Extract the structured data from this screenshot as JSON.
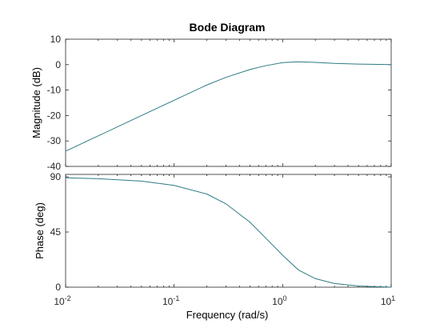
{
  "chart_data": {
    "type": "line",
    "title": "Bode Diagram",
    "xlabel": "Frequency  (rad/s)",
    "xscale": "log",
    "xlim": [
      0.01,
      10
    ],
    "x_ticks": [
      {
        "value": 0.01,
        "base": "10",
        "exp": "-2"
      },
      {
        "value": 0.1,
        "base": "10",
        "exp": "-1"
      },
      {
        "value": 1,
        "base": "10",
        "exp": "0"
      },
      {
        "value": 10,
        "base": "10",
        "exp": "1"
      }
    ],
    "line_color": "#2e7b83",
    "grid": false,
    "panels": [
      {
        "name": "magnitude",
        "ylabel": "Magnitude (dB)",
        "ylim": [
          -40,
          10
        ],
        "yticks": [
          10,
          0,
          -10,
          -20,
          -30,
          -40
        ],
        "series": [
          {
            "x": [
              0.01,
              0.02,
              0.05,
              0.1,
              0.2,
              0.3,
              0.5,
              0.7,
              1.0,
              1.4,
              2.0,
              3.0,
              5.0,
              10
            ],
            "y": [
              -34,
              -28,
              -20,
              -14,
              -8,
              -5,
              -1.9,
              -0.4,
              0.8,
              1.1,
              0.9,
              0.5,
              0.2,
              0
            ]
          }
        ]
      },
      {
        "name": "phase",
        "ylabel": "Phase (deg)",
        "ylim": [
          0,
          92
        ],
        "yticks": [
          90,
          45,
          0
        ],
        "series": [
          {
            "x": [
              0.01,
              0.02,
              0.05,
              0.1,
              0.2,
              0.3,
              0.5,
              0.7,
              1.0,
              1.4,
              2.0,
              3.0,
              5.0,
              10
            ],
            "y": [
              89.2,
              88.5,
              86.5,
              83,
              76,
              68,
              53,
              40,
              26,
              14,
              7,
              3,
              1,
              0
            ]
          }
        ]
      }
    ]
  }
}
